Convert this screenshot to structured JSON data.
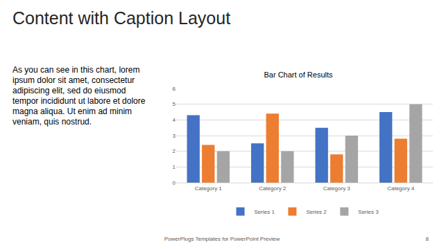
{
  "slide": {
    "title": "Content with Caption Layout",
    "caption": "As you can see in this chart, lorem ipsum dolor sit amet, consectetur adipiscing elit, sed do eiusmod tempor incididunt ut labore et dolore magna aliqua. Ut enim ad minim veniam, quis nostrud.",
    "footer": "PowerPlugs Templates for PowerPoint Preview",
    "page_number": "8"
  },
  "chart_data": {
    "type": "bar",
    "title": "Bar Chart of Results",
    "categories": [
      "Category 1",
      "Category 2",
      "Category 3",
      "Category 4"
    ],
    "series": [
      {
        "name": "Series 1",
        "color": "#4472c4",
        "values": [
          4.3,
          2.5,
          3.5,
          4.5
        ]
      },
      {
        "name": "Series 2",
        "color": "#ed7d31",
        "values": [
          2.4,
          4.4,
          1.8,
          2.8
        ]
      },
      {
        "name": "Series 3",
        "color": "#a5a5a5",
        "values": [
          2,
          2,
          3,
          5
        ]
      }
    ],
    "ylim": [
      0,
      6
    ],
    "yticks": [
      0,
      1,
      2,
      3,
      4,
      5,
      6
    ],
    "grid": true,
    "legend": "bottom"
  }
}
